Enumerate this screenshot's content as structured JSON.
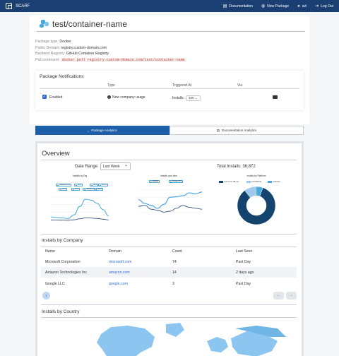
{
  "nav": {
    "brand": "SCARF",
    "links": [
      {
        "label": "Documentation",
        "icon": "book-icon"
      },
      {
        "label": "New Package",
        "icon": "globe-icon"
      },
      {
        "label": "avi",
        "icon": "user-icon"
      },
      {
        "label": "Log Out",
        "icon": "logout-icon"
      }
    ]
  },
  "package": {
    "title": "test/container-name",
    "meta": [
      {
        "key": "Package type:",
        "value": "Docker"
      },
      {
        "key": "Public Domain:",
        "value": "registry.custom-domain.com"
      },
      {
        "key": "Backend Registry:",
        "value": "GitHub Container Registry"
      },
      {
        "key": "Pull command:",
        "value": "docker pull registry.custom-domain.com/test/container-name"
      }
    ]
  },
  "notifications": {
    "title": "Package Notifications",
    "headers": {
      "type": "Type",
      "triggered": "Triggered At",
      "via": "Via"
    },
    "row": {
      "enabled": "Enabled",
      "type": "New company usage",
      "installs_label": "Installs:",
      "installs_value": "100"
    }
  },
  "tabs": [
    "Package Analytics",
    "Documentation Analytics"
  ],
  "overview": {
    "title": "Overview",
    "date_range_label": "Date Range:",
    "date_range_value": "Last Week",
    "total_installs": "Total Installs: 36,872"
  },
  "charts": {
    "by_tag": {
      "title": "Installs by Tag",
      "legend": [
        "release-0.9.1",
        "v0.1",
        "v0.2",
        "v0.2.1",
        "v1.0",
        "v2.0",
        "release-0.8",
        "latest"
      ],
      "values": [
        8,
        7,
        6,
        5,
        12,
        28,
        42,
        40,
        34,
        22,
        10
      ]
    },
    "over_time": {
      "title": "Installs over time",
      "legend": [
        "Installs",
        "Unique IP's"
      ],
      "installs": [
        30,
        22,
        18,
        12,
        20,
        35,
        36,
        38,
        44,
        42,
        46
      ],
      "unique": [
        16,
        18,
        10,
        8,
        4,
        6,
        12,
        18,
        14,
        12,
        10
      ]
    },
    "by_platform": {
      "title": "Installs by Platform",
      "legend": [
        {
          "label": "Just Linux x86_64",
          "color": "#14436e"
        },
        {
          "label": "Just MacOS",
          "color": "#9ec9ef"
        },
        {
          "label": "Unknown",
          "color": "#48a8e0"
        }
      ],
      "values": [
        84,
        10,
        6
      ]
    }
  },
  "company": {
    "title": "Installs by Company",
    "headers": [
      "Name",
      "Domain",
      "Count",
      "Last Seen"
    ],
    "rows": [
      {
        "name": "Microsoft Corporation",
        "domain": "microsoft.com",
        "count": "74",
        "last_seen": "Past Day"
      },
      {
        "name": "Amazon Technologies Inc.",
        "domain": "amazon.com",
        "count": "14",
        "last_seen": "2 days ago"
      },
      {
        "name": "Google LLC",
        "domain": "google.com",
        "count": "3",
        "last_seen": "Past Day"
      }
    ],
    "page": "1"
  },
  "country": {
    "title": "Installs by Country"
  },
  "colors": {
    "nav": "#1c3f73",
    "accent": "#2d6bd1",
    "chart": "#48a8e0"
  }
}
